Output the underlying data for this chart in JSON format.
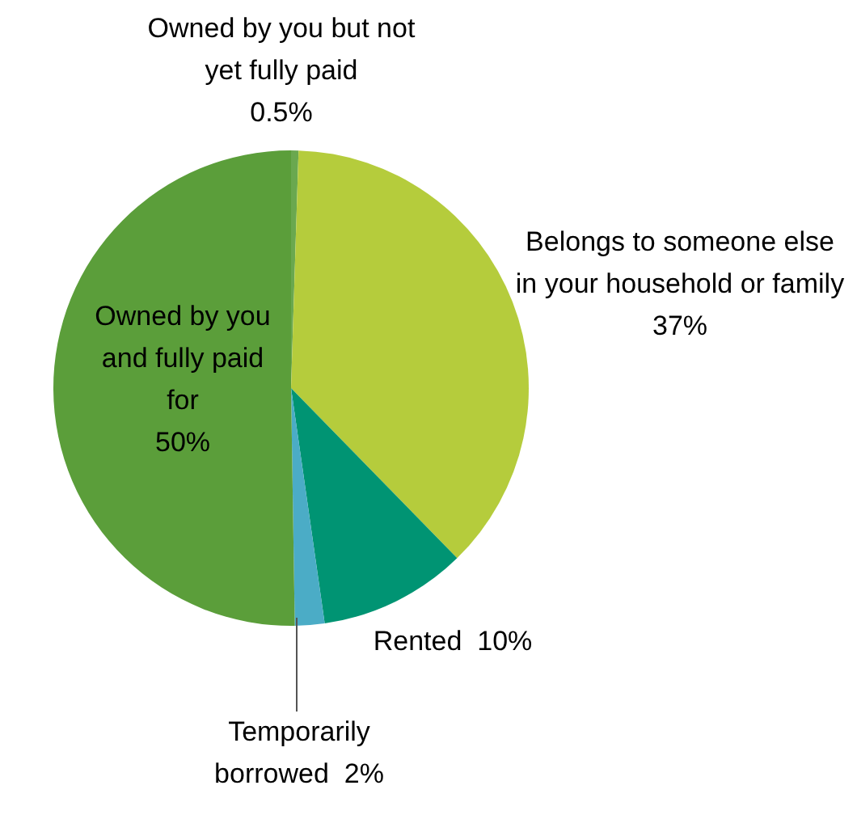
{
  "chart_data": {
    "type": "pie",
    "categories": [
      "Owned by you but not yet fully paid",
      "Belongs to someone else in your household or family",
      "Rented",
      "Temporarily borrowed",
      "Owned by you and fully paid for"
    ],
    "values": [
      0.5,
      37,
      10,
      2,
      50
    ],
    "value_labels": [
      "0.5%",
      "37%",
      "10%",
      "2%",
      "50%"
    ],
    "colors": [
      "#6aa84f",
      "#b5cc3c",
      "#009473",
      "#4bacc6",
      "#5b9e3a"
    ],
    "legend": false
  }
}
